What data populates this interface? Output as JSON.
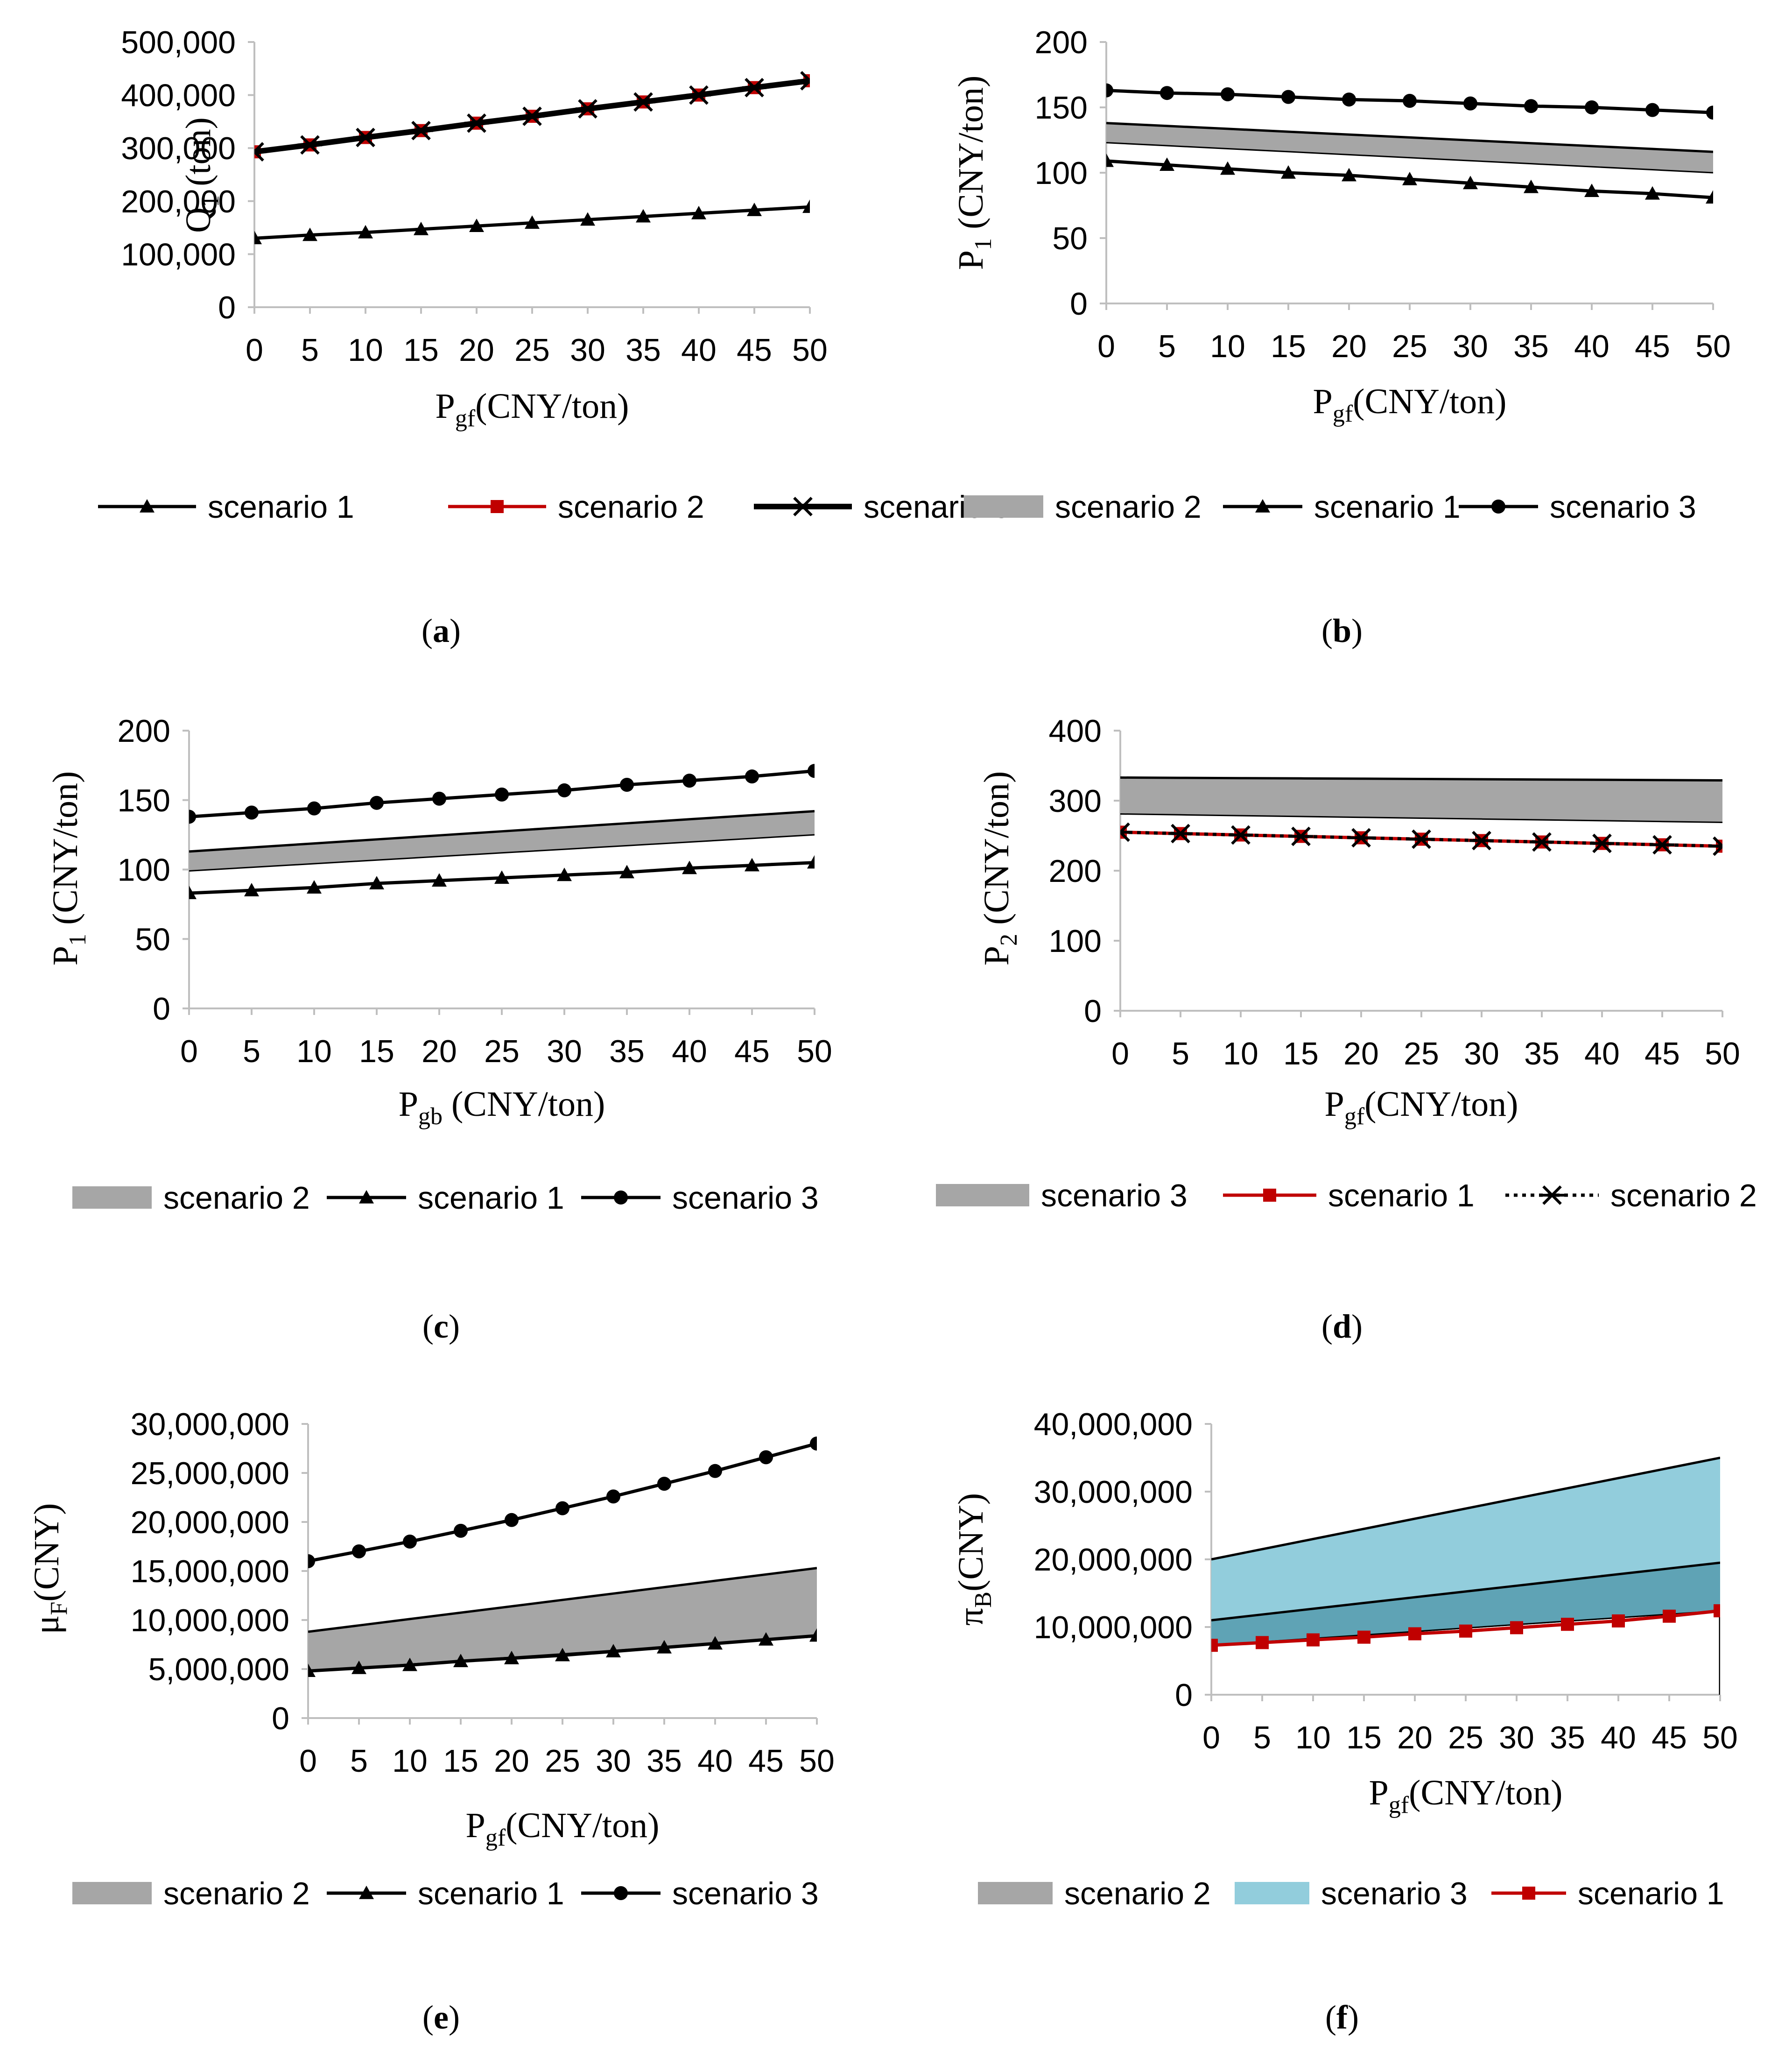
{
  "chart_data": [
    {
      "panel": "a",
      "caption": {
        "open": "(",
        "letter": "a",
        "close": ")"
      },
      "type": "line",
      "x": [
        0,
        5,
        10,
        15,
        20,
        25,
        30,
        35,
        40,
        45,
        50
      ],
      "xlabel": {
        "main": "P",
        "sub": "gf",
        "rest": "(CNY/ton)"
      },
      "ylabel": {
        "main": "Q",
        "sub": "1",
        "rest": " (ton)"
      },
      "ylim": [
        0,
        500000
      ],
      "yticks": [
        0,
        100000,
        200000,
        300000,
        400000,
        500000
      ],
      "ytick_labels": [
        "0",
        "100,000",
        "200,000",
        "300,000",
        "400,000",
        "500,000"
      ],
      "series": [
        {
          "name": "scenario 1",
          "kind": "line",
          "marker": "triangle",
          "color": "#000000",
          "values": [
            130000,
            136000,
            141000,
            147000,
            153000,
            159000,
            165000,
            171000,
            177000,
            183000,
            189000
          ]
        },
        {
          "name": "scenario 2",
          "kind": "line",
          "marker": "square",
          "color": "#C00000",
          "values": [
            293000,
            306000,
            320000,
            333000,
            347000,
            360000,
            374000,
            387000,
            400000,
            414000,
            427000
          ]
        },
        {
          "name": "scenario 3",
          "kind": "line",
          "marker": "star",
          "color": "#000000",
          "values": [
            293000,
            306000,
            320000,
            333000,
            347000,
            360000,
            374000,
            387000,
            400000,
            414000,
            427000
          ]
        }
      ],
      "legend": [
        "scenario 1",
        "scenario 2",
        "scenario 3"
      ]
    },
    {
      "panel": "b",
      "caption": {
        "open": "(",
        "letter": "b",
        "close": ")"
      },
      "type": "line",
      "x": [
        0,
        5,
        10,
        15,
        20,
        25,
        30,
        35,
        40,
        45,
        50
      ],
      "xlabel": {
        "main": "P",
        "sub": "gf",
        "rest": "(CNY/ton)"
      },
      "ylabel": {
        "main": "P",
        "sub": "1",
        "rest": " (CNY/ton)"
      },
      "ylim": [
        0,
        200
      ],
      "yticks": [
        0,
        50,
        100,
        150,
        200
      ],
      "ytick_labels": [
        "0",
        "50",
        "100",
        "150",
        "200"
      ],
      "series": [
        {
          "name": "scenario 2",
          "kind": "band",
          "color": "#A6A6A6",
          "upper": [
            138,
            135.8,
            133.6,
            131.4,
            129.2,
            127,
            124.8,
            122.6,
            120.4,
            118.2,
            116
          ],
          "lower": [
            123,
            120.7,
            118.4,
            116.1,
            113.8,
            111.5,
            109.2,
            106.9,
            104.6,
            102.3,
            100
          ]
        },
        {
          "name": "scenario 1",
          "kind": "line",
          "marker": "triangle",
          "color": "#000000",
          "values": [
            109,
            106,
            103,
            100,
            98,
            95,
            92,
            89,
            86,
            84,
            81
          ]
        },
        {
          "name": "scenario 3",
          "kind": "line",
          "marker": "circle",
          "color": "#000000",
          "values": [
            163,
            161,
            160,
            158,
            156,
            155,
            153,
            151,
            150,
            148,
            146
          ]
        }
      ],
      "legend": [
        "scenario 2",
        "scenario 1",
        "scenario 3"
      ]
    },
    {
      "panel": "c",
      "caption": {
        "open": "(",
        "letter": "c",
        "close": ")"
      },
      "type": "line",
      "x": [
        0,
        5,
        10,
        15,
        20,
        25,
        30,
        35,
        40,
        45,
        50
      ],
      "xlabel": {
        "main": "P",
        "sub": "gb",
        "rest": " (CNY/ton)"
      },
      "ylabel": {
        "main": "P",
        "sub": "1",
        "rest": " (CNY/ton)"
      },
      "ylim": [
        0,
        200
      ],
      "yticks": [
        0,
        50,
        100,
        150,
        200
      ],
      "ytick_labels": [
        "0",
        "50",
        "100",
        "150",
        "200"
      ],
      "series": [
        {
          "name": "scenario 2",
          "kind": "band",
          "color": "#A6A6A6",
          "upper": [
            113,
            115.9,
            118.8,
            121.7,
            124.6,
            127.5,
            130.4,
            133.3,
            136.2,
            139.1,
            142
          ],
          "lower": [
            99,
            101.6,
            104.2,
            106.8,
            109.4,
            112,
            114.6,
            117.2,
            119.8,
            122.4,
            125
          ]
        },
        {
          "name": "scenario 1",
          "kind": "line",
          "marker": "triangle",
          "color": "#000000",
          "values": [
            83,
            85,
            87,
            90,
            92,
            94,
            96,
            98,
            101,
            103,
            105
          ]
        },
        {
          "name": "scenario 3",
          "kind": "line",
          "marker": "circle",
          "color": "#000000",
          "values": [
            138,
            141,
            144,
            148,
            151,
            154,
            157,
            161,
            164,
            167,
            171
          ]
        }
      ],
      "legend": [
        "scenario 2",
        "scenario 1",
        "scenario 3"
      ]
    },
    {
      "panel": "d",
      "caption": {
        "open": "(",
        "letter": "d",
        "close": ")"
      },
      "type": "line",
      "x": [
        0,
        5,
        10,
        15,
        20,
        25,
        30,
        35,
        40,
        45,
        50
      ],
      "xlabel": {
        "main": "P",
        "sub": "gf",
        "rest": "(CNY/ton)"
      },
      "ylabel": {
        "main": "P",
        "sub": "2",
        "rest": " (CNY/ton)"
      },
      "ylim": [
        0,
        400
      ],
      "yticks": [
        0,
        100,
        200,
        300,
        400
      ],
      "ytick_labels": [
        "0",
        "100",
        "200",
        "300",
        "400"
      ],
      "series": [
        {
          "name": "scenario 3",
          "kind": "band",
          "color": "#A6A6A6",
          "upper": [
            333,
            332.6,
            332.2,
            331.8,
            331.4,
            331,
            330.6,
            330.2,
            329.8,
            329.4,
            329
          ],
          "lower": [
            281,
            279.8,
            278.6,
            277.4,
            276.2,
            275,
            273.8,
            272.6,
            271.4,
            270.2,
            269
          ]
        },
        {
          "name": "scenario 1",
          "kind": "line",
          "marker": "square",
          "color": "#C00000",
          "values": [
            255,
            253,
            251,
            249,
            247,
            245,
            243,
            241,
            239,
            237,
            235
          ]
        },
        {
          "name": "scenario 2",
          "kind": "line",
          "marker": "star",
          "color": "#000000",
          "dotted": true,
          "values": [
            255,
            253,
            251,
            249,
            247,
            245,
            243,
            241,
            239,
            237,
            235
          ]
        }
      ],
      "legend": [
        "scenario 3",
        "scenario 1",
        "scenario 2"
      ]
    },
    {
      "panel": "e",
      "caption": {
        "open": "(",
        "letter": "e",
        "close": ")"
      },
      "type": "line",
      "x": [
        0,
        5,
        10,
        15,
        20,
        25,
        30,
        35,
        40,
        45,
        50
      ],
      "xlabel": {
        "main": "P",
        "sub": "gf",
        "rest": "(CNY/ton)"
      },
      "ylabel": {
        "main": "μ",
        "sub": "F",
        "rest": "(CNY)"
      },
      "ylim": [
        0,
        30000000
      ],
      "yticks": [
        0,
        5000000,
        10000000,
        15000000,
        20000000,
        25000000,
        30000000
      ],
      "ytick_labels": [
        "0",
        "5,000,000",
        "10,000,000",
        "15,000,000",
        "20,000,000",
        "25,000,000",
        "30,000,000"
      ],
      "series": [
        {
          "name": "scenario 2",
          "kind": "band",
          "color": "#A6A6A6",
          "upper": [
            8800000,
            9450000,
            10100000,
            10750000,
            11400000,
            12050000,
            12700000,
            13350000,
            14000000,
            14650000,
            15300000
          ],
          "lower": [
            4800000,
            5150000,
            5500000,
            5850000,
            6200000,
            6550000,
            6900000,
            7250000,
            7600000,
            7950000,
            8300000
          ]
        },
        {
          "name": "scenario 1",
          "kind": "line",
          "marker": "triangle",
          "color": "#000000",
          "values": [
            4800000,
            5100000,
            5400000,
            5800000,
            6100000,
            6400000,
            6800000,
            7200000,
            7600000,
            8000000,
            8400000
          ]
        },
        {
          "name": "scenario 3",
          "kind": "line",
          "marker": "circle",
          "color": "#000000",
          "values": [
            16000000,
            17000000,
            18000000,
            19100000,
            20200000,
            21400000,
            22600000,
            23900000,
            25200000,
            26600000,
            28000000
          ]
        }
      ],
      "legend": [
        "scenario 2",
        "scenario 1",
        "scenario 3"
      ]
    },
    {
      "panel": "f",
      "caption": {
        "open": "(",
        "letter": "f",
        "close": ")"
      },
      "type": "area",
      "x": [
        0,
        5,
        10,
        15,
        20,
        25,
        30,
        35,
        40,
        45,
        50
      ],
      "xlabel": {
        "main": "P",
        "sub": "gf",
        "rest": "(CNY/ton)"
      },
      "ylabel": {
        "main": "π",
        "sub": "B",
        "rest": "(CNY)"
      },
      "ylim": [
        0,
        40000000
      ],
      "yticks": [
        0,
        10000000,
        20000000,
        30000000,
        40000000
      ],
      "ytick_labels": [
        "0",
        "10,000,000",
        "20,000,000",
        "30,000,000",
        "40,000,000"
      ],
      "series": [
        {
          "name": "scenario 3",
          "kind": "band",
          "color": "#92CDDC",
          "upper": [
            20000000,
            21500000,
            23000000,
            24500000,
            26000000,
            27500000,
            29000000,
            30500000,
            32000000,
            33500000,
            35000000
          ],
          "lower": [
            7300000,
            7810000,
            8320000,
            8830000,
            9340000,
            9850000,
            10360000,
            10870000,
            11380000,
            11890000,
            12400000
          ]
        },
        {
          "name": "scenario 2",
          "kind": "band",
          "color": "#A6A6A6",
          "blendColor": "#5FA3B5",
          "upper": [
            11000000,
            11850000,
            12700000,
            13550000,
            14400000,
            15250000,
            16100000,
            16950000,
            17800000,
            18650000,
            19500000
          ],
          "lower": [
            7300000,
            7810000,
            8320000,
            8830000,
            9340000,
            9850000,
            10360000,
            10870000,
            11380000,
            11890000,
            12400000
          ]
        },
        {
          "name": "scenario 1",
          "kind": "line",
          "marker": "square",
          "color": "#C00000",
          "values": [
            7300000,
            7700000,
            8100000,
            8500000,
            9000000,
            9400000,
            9900000,
            10400000,
            10900000,
            11600000,
            12400000
          ]
        }
      ],
      "legend": [
        "scenario 2",
        "scenario 3",
        "scenario 1"
      ]
    }
  ]
}
